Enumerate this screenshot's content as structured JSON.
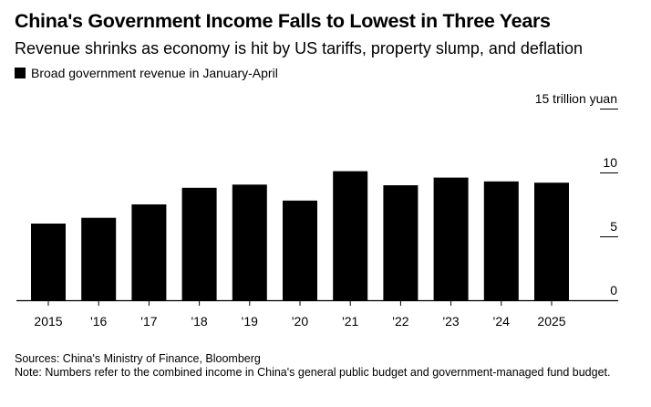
{
  "header": {
    "title": "China's Government Income Falls to Lowest in Three Years",
    "subtitle": "Revenue shrinks as economy is hit by US tariffs, property slump, and deflation"
  },
  "legend": {
    "label": "Broad government revenue in January-April"
  },
  "footer": {
    "sources": "Sources: China's Ministry of Finance, Bloomberg",
    "note": "Note: Numbers refer to the combined income in China's general public budget and government-managed fund budget."
  },
  "colors": {
    "bar": "#000000",
    "axis": "#000000",
    "text": "#000000"
  },
  "chart_data": {
    "type": "bar",
    "title": "China's Government Income Falls to Lowest in Three Years",
    "subtitle": "Revenue shrinks as economy is hit by US tariffs, property slump, and deflation",
    "categories": [
      "2015",
      "'16",
      "'17",
      "'18",
      "'19",
      "'20",
      "'21",
      "'22",
      "'23",
      "'24",
      "2025"
    ],
    "series": [
      {
        "name": "Broad government revenue in January-April",
        "values": [
          6.0,
          6.45,
          7.5,
          8.8,
          9.05,
          7.8,
          10.1,
          9.0,
          9.6,
          9.3,
          9.2
        ]
      }
    ],
    "yticks": [
      0,
      5,
      10,
      15
    ],
    "ytick_labels": [
      "0",
      "5",
      "10",
      "15 trillion yuan"
    ],
    "ylim": [
      0,
      15
    ],
    "yaxis_position": "right",
    "grid": false,
    "legend_position": "top-left"
  }
}
